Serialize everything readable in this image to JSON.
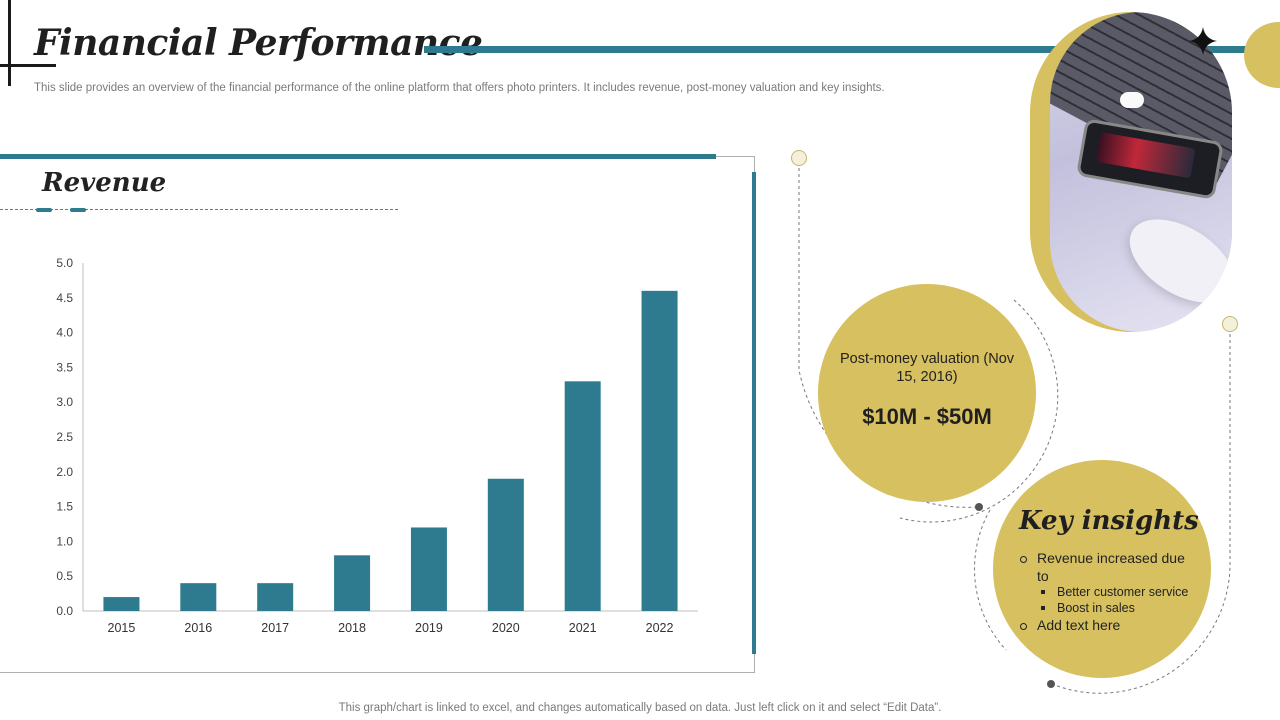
{
  "header": {
    "title": "Financial Performance",
    "subtitle": "This slide provides an overview of the financial performance of the online platform that offers photo printers. It includes revenue, post-money valuation and key insights."
  },
  "chart_section": {
    "heading": "Revenue"
  },
  "chart_data": {
    "type": "bar",
    "title": "Revenue",
    "categories": [
      "2015",
      "2016",
      "2017",
      "2018",
      "2019",
      "2020",
      "2021",
      "2022"
    ],
    "values": [
      0.2,
      0.4,
      0.4,
      0.8,
      1.2,
      1.9,
      3.3,
      4.6
    ],
    "ylim": [
      0,
      5
    ],
    "yticks": [
      "0.0",
      "0.5",
      "1.0",
      "1.5",
      "2.0",
      "2.5",
      "3.0",
      "3.5",
      "4.0",
      "4.5",
      "5.0"
    ],
    "xlabel": "",
    "ylabel": "",
    "grid": false,
    "bar_color": "#2e7a8f"
  },
  "valuation": {
    "label": "Post-money valuation (Nov 15, 2016)",
    "amount": "$10M - $50M"
  },
  "insights": {
    "title": "Key insights",
    "item1": "Revenue increased due to",
    "sub1": "Better customer service",
    "sub2": "Boost in sales",
    "item2": "Add text here"
  },
  "footer": {
    "note": "This graph/chart is linked to excel,  and changes automatically based on data. Just left click on it and select “Edit Data”."
  },
  "colors": {
    "accent_teal": "#2e7a8f",
    "accent_gold": "#d7c060"
  }
}
